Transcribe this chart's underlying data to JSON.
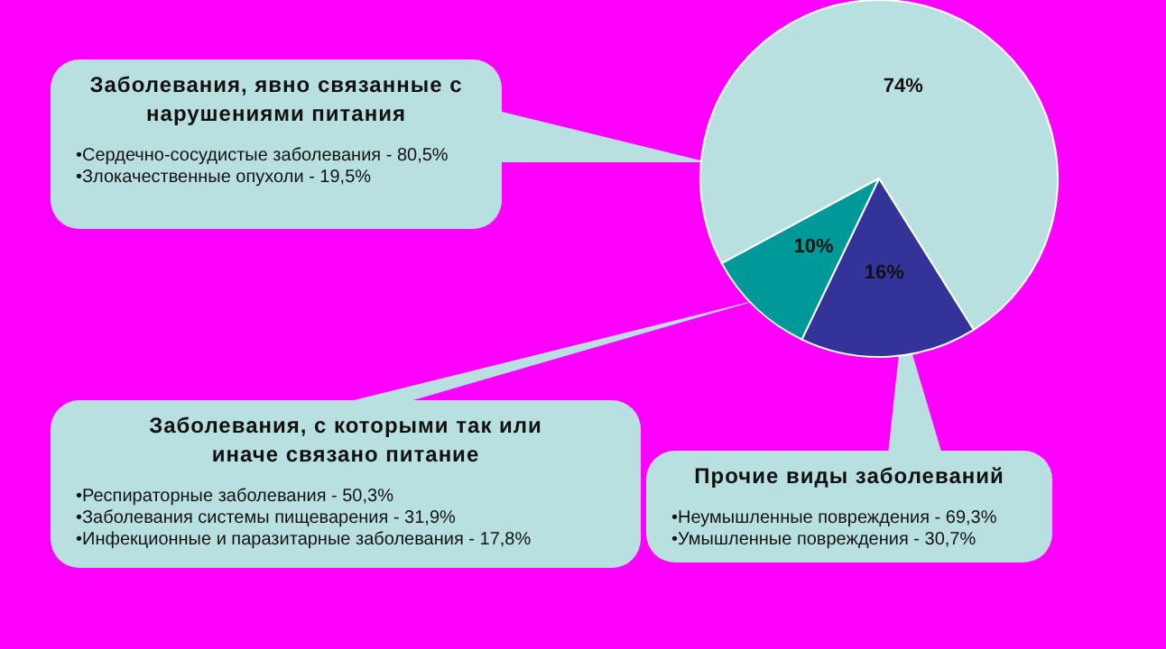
{
  "chart_data": {
    "type": "pie",
    "categories": [
      null,
      null,
      null
    ],
    "values": [
      74,
      16,
      10
    ],
    "value_labels": [
      "74%",
      "16%",
      "10%"
    ],
    "colors": [
      "#b9e0e0",
      "#333399",
      "#009999"
    ],
    "annotations": [
      "Заболевания, явно связанные с нарушениями питания",
      "•Сердечно-сосудистые заболевания - 80,5%\n•Злокачественные опухоли - 19,5%",
      "Прочие виды заболеваний",
      "•Неумышленные повреждения - 69,3%\n•Умышленные повреждения - 30,7%",
      "Заболевания, с которыми так или иначе связано питание",
      "•Респираторные заболевания - 50,3%\n•Заболевания системы пищеварения - 31,9%\n•Инфекционные и паразитарные заболевания - 17,8%"
    ]
  }
}
